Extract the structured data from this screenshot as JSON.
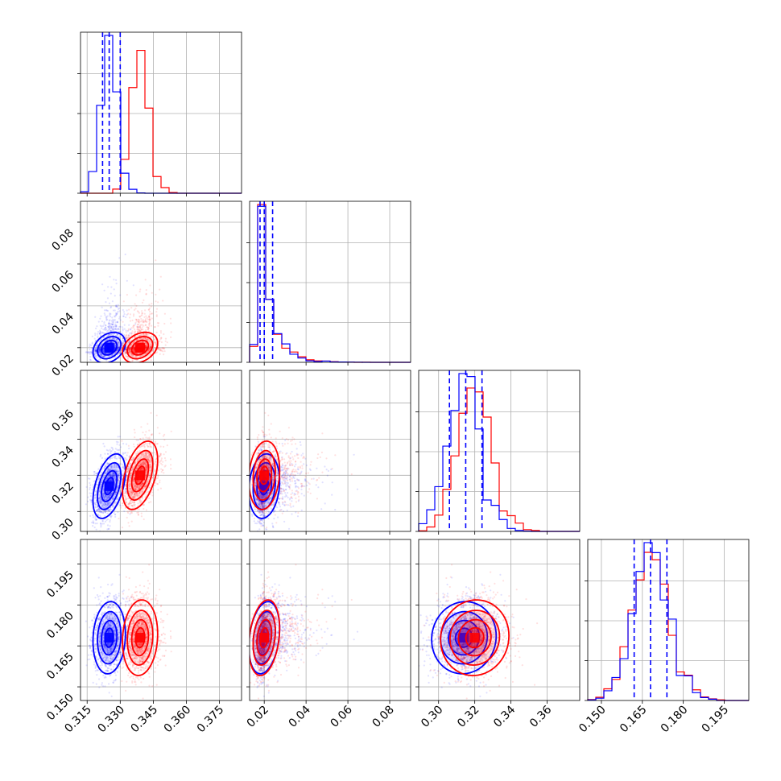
{
  "chart_data": {
    "type": "corner",
    "colors": {
      "blue": "#0000ff",
      "red": "#ff0000",
      "grid": "#b0b0b0"
    },
    "parameters": [
      {
        "range": [
          0.312,
          0.385
        ],
        "ticks": [
          0.315,
          0.33,
          0.345,
          0.36,
          0.375
        ],
        "tick_labels": [
          "0.315",
          "0.330",
          "0.345",
          "0.360",
          "0.375"
        ]
      },
      {
        "range": [
          0.013,
          0.09
        ],
        "ticks": [
          0.02,
          0.04,
          0.06,
          0.08
        ],
        "tick_labels": [
          "0.02",
          "0.04",
          "0.06",
          "0.08"
        ]
      },
      {
        "range": [
          0.289,
          0.378
        ],
        "ticks": [
          0.3,
          0.32,
          0.34,
          0.36
        ],
        "tick_labels": [
          "0.30",
          "0.32",
          "0.34",
          "0.36"
        ]
      },
      {
        "range": [
          0.145,
          0.204
        ],
        "ticks": [
          0.15,
          0.165,
          0.18,
          0.195
        ],
        "tick_labels": [
          "0.150",
          "0.165",
          "0.180",
          "0.195"
        ]
      }
    ],
    "series": [
      {
        "name": "",
        "color": "#0000ff",
        "mean": [
          0.325,
          0.02,
          0.314,
          0.168
        ],
        "sigma": [
          0.0035,
          0.0035,
          0.0085,
          0.0063
        ],
        "quantiles": [
          [
            0.322,
            0.325,
            0.33
          ],
          [
            0.018,
            0.02,
            0.024
          ],
          [
            0.306,
            0.315,
            0.324
          ],
          [
            0.162,
            0.168,
            0.174
          ]
        ],
        "correlation": [
          [
            1,
            0.3,
            0.45,
            0.1
          ],
          [
            0.3,
            1,
            0.15,
            0.25
          ],
          [
            0.45,
            0.15,
            1,
            0.05
          ],
          [
            0.1,
            0.25,
            0.05,
            1
          ]
        ]
      },
      {
        "name": "",
        "color": "#ff0000",
        "mean": [
          0.339,
          0.02,
          0.32,
          0.168
        ],
        "sigma": [
          0.0038,
          0.0035,
          0.009,
          0.0066
        ],
        "correlation": [
          [
            1,
            0.3,
            0.45,
            0.1
          ],
          [
            0.3,
            1,
            0.15,
            0.25
          ],
          [
            0.45,
            0.15,
            1,
            0.05
          ],
          [
            0.1,
            0.25,
            0.05,
            1
          ]
        ]
      }
    ],
    "grid": true,
    "levels": [
      0.39,
      0.86,
      0.99
    ]
  }
}
